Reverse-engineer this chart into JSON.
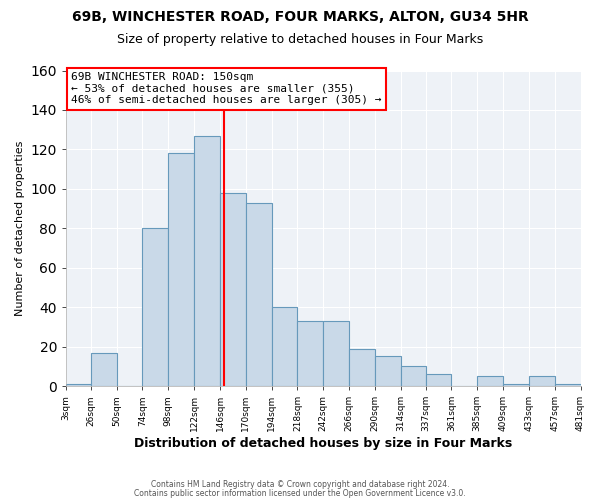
{
  "title1": "69B, WINCHESTER ROAD, FOUR MARKS, ALTON, GU34 5HR",
  "title2": "Size of property relative to detached houses in Four Marks",
  "xlabel": "Distribution of detached houses by size in Four Marks",
  "ylabel": "Number of detached properties",
  "bin_edges": [
    3,
    26,
    50,
    74,
    98,
    122,
    146,
    170,
    194,
    218,
    242,
    266,
    290,
    314,
    337,
    361,
    385,
    409,
    433,
    457,
    481
  ],
  "bar_heights": [
    1,
    17,
    0,
    80,
    118,
    127,
    98,
    93,
    40,
    33,
    33,
    19,
    15,
    10,
    6,
    0,
    5,
    1,
    5,
    1
  ],
  "bar_color": "#c9d9e8",
  "bar_edgecolor": "#6699bb",
  "vline_x": 150,
  "vline_color": "red",
  "ylim": [
    0,
    160
  ],
  "annotation_title": "69B WINCHESTER ROAD: 150sqm",
  "annotation_line1": "← 53% of detached houses are smaller (355)",
  "annotation_line2": "46% of semi-detached houses are larger (305) →",
  "annotation_box_color": "#ffffff",
  "annotation_box_edgecolor": "red",
  "footer1": "Contains HM Land Registry data © Crown copyright and database right 2024.",
  "footer2": "Contains public sector information licensed under the Open Government Licence v3.0.",
  "background_color": "#ffffff",
  "plot_background": "#eef2f7",
  "grid_color": "#ffffff",
  "tick_labels": [
    "3sqm",
    "26sqm",
    "50sqm",
    "74sqm",
    "98sqm",
    "122sqm",
    "146sqm",
    "170sqm",
    "194sqm",
    "218sqm",
    "242sqm",
    "266sqm",
    "290sqm",
    "314sqm",
    "337sqm",
    "361sqm",
    "385sqm",
    "409sqm",
    "433sqm",
    "457sqm",
    "481sqm"
  ],
  "title1_fontsize": 10,
  "title2_fontsize": 9,
  "ylabel_fontsize": 8,
  "xlabel_fontsize": 9
}
